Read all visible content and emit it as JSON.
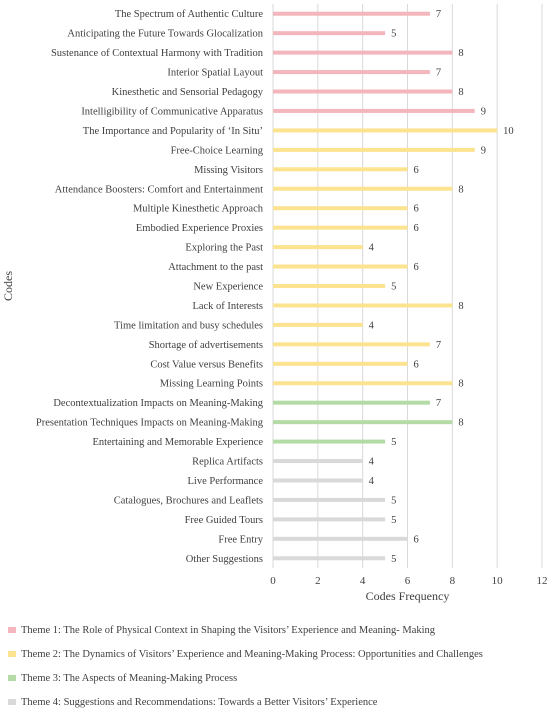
{
  "chart_data": {
    "type": "bar",
    "orientation": "horizontal",
    "ylabel": "Codes",
    "xlabel": "Codes Frequency",
    "xlim": [
      0,
      12
    ],
    "xticks": [
      0,
      2,
      4,
      6,
      8,
      10,
      12
    ],
    "grid": true,
    "legend_position": "bottom",
    "categories": [
      "The Spectrum of Authentic Culture",
      "Anticipating the Future Towards Glocalization",
      "Sustenance of Contextual Harmony with Tradition",
      "Interior Spatial Layout",
      "Kinesthetic and Sensorial Pedagogy",
      "Intelligibility of Communicative Apparatus",
      "The Importance and Popularity of ‘In Situ’",
      "Free-Choice Learning",
      "Missing Visitors",
      "Attendance Boosters: Comfort and Entertainment",
      "Multiple Kinesthetic Approach",
      "Embodied Experience Proxies",
      "Exploring the Past",
      "Attachment to the past",
      "New Experience",
      "Lack of Interests",
      "Time limitation and busy schedules",
      "Shortage of advertisements",
      "Cost Value versus Benefits",
      "Missing Learning Points",
      "Decontextualization Impacts on Meaning-Making",
      "Presentation Techniques Impacts on Meaning-Making",
      "Entertaining and Memorable Experience",
      "Replica Artifacts",
      "Live Performance",
      "Catalogues, Brochures and Leaflets",
      "Free Guided Tours",
      "Free Entry",
      "Other Suggestions"
    ],
    "values": [
      7,
      5,
      8,
      7,
      8,
      9,
      10,
      9,
      6,
      8,
      6,
      6,
      4,
      6,
      5,
      8,
      4,
      7,
      6,
      8,
      7,
      8,
      5,
      4,
      4,
      5,
      5,
      6,
      5
    ],
    "themes": [
      1,
      1,
      1,
      1,
      1,
      1,
      2,
      2,
      2,
      2,
      2,
      2,
      2,
      2,
      2,
      2,
      2,
      2,
      2,
      2,
      3,
      3,
      3,
      4,
      4,
      4,
      4,
      4,
      4
    ],
    "series": [
      {
        "name": "Theme 1:  The Role of Physical Context in Shaping the Visitors’ Experience and Meaning- Making",
        "color": "#f4b6bd"
      },
      {
        "name": "Theme 2: The Dynamics of Visitors’ Experience and Meaning-Making  Process: Opportunities and Challenges",
        "color": "#fbe38f"
      },
      {
        "name": "Theme 3: The Aspects of Meaning-Making Process",
        "color": "#b4dba6"
      },
      {
        "name": "Theme 4: Suggestions and Recommendations: Towards a Better Visitors’ Experience",
        "color": "#d9d9d9"
      }
    ],
    "gridline_color": "#d9d9d9",
    "text_color": "#404040"
  }
}
